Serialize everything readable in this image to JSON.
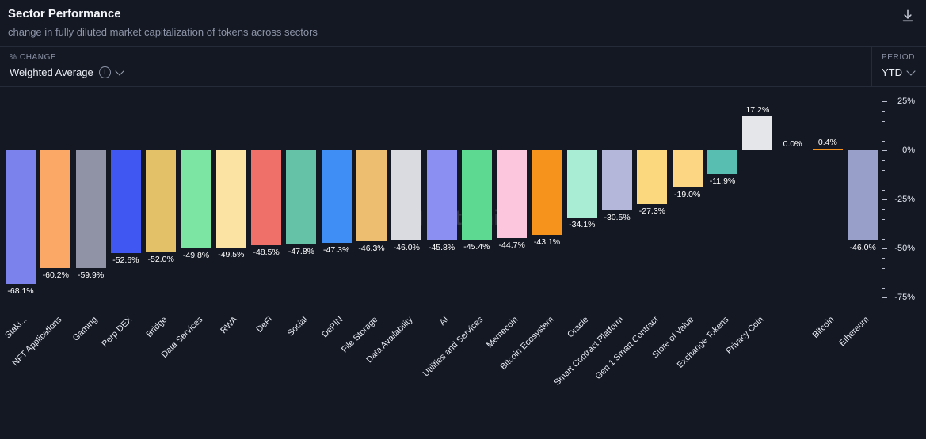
{
  "header": {
    "title": "Sector Performance",
    "subtitle": "change in fully diluted market capitalization of tokens across sectors"
  },
  "controls": {
    "metric": {
      "caption": "% CHANGE",
      "value": "Weighted Average"
    },
    "period": {
      "caption": "PERIOD",
      "value": "YTD"
    }
  },
  "icons": {
    "info": "i"
  },
  "watermark": "Artemis",
  "colors": {
    "background": "#141823",
    "border": "#262b39",
    "text_primary": "#f4f6fa",
    "text_secondary": "#8d94a8",
    "axis": "#b9bfcc",
    "bitcoin_orange": "#f7941d"
  },
  "chart_data": {
    "type": "bar",
    "title": "Sector Performance",
    "ylabel": "% change in fully diluted market cap",
    "ylim": [
      -75,
      25
    ],
    "grid": false,
    "legend": "none",
    "axis_position": "right",
    "x_tick_rotation": 45,
    "value_labels": true,
    "y_axis": {
      "ticks": [
        {
          "label": "25%",
          "value": 25
        },
        {
          "label": "0%",
          "value": 0
        },
        {
          "label": "-25%",
          "value": -25
        },
        {
          "label": "-50%",
          "value": -50
        },
        {
          "label": "-75%",
          "value": -75
        }
      ],
      "minor_step": 5
    },
    "bars": [
      {
        "label": "Staki...",
        "value": -68.1,
        "display": "-68.1%",
        "color": "#7c82ec"
      },
      {
        "label": "NFT Applications",
        "value": -60.2,
        "display": "-60.2%",
        "color": "#fba766"
      },
      {
        "label": "Gaming",
        "value": -59.9,
        "display": "-59.9%",
        "color": "#8f93a5"
      },
      {
        "label": "Perp DEX",
        "value": -52.6,
        "display": "-52.6%",
        "color": "#4157f2"
      },
      {
        "label": "Bridge",
        "value": -52.0,
        "display": "-52.0%",
        "color": "#e2c168"
      },
      {
        "label": "Data Services",
        "value": -49.8,
        "display": "-49.8%",
        "color": "#7de5a4"
      },
      {
        "label": "RWA",
        "value": -49.5,
        "display": "-49.5%",
        "color": "#fbe3a4"
      },
      {
        "label": "DeFi",
        "value": -48.5,
        "display": "-48.5%",
        "color": "#ef7069"
      },
      {
        "label": "Social",
        "value": -47.8,
        "display": "-47.8%",
        "color": "#66c2a7"
      },
      {
        "label": "DePIN",
        "value": -47.3,
        "display": "-47.3%",
        "color": "#3f8ef5"
      },
      {
        "label": "File Storage",
        "value": -46.3,
        "display": "-46.3%",
        "color": "#eebe70"
      },
      {
        "label": "Data Availability",
        "value": -46.0,
        "display": "-46.0%",
        "color": "#d9dbe1"
      },
      {
        "label": "AI",
        "value": -45.8,
        "display": "-45.8%",
        "color": "#8b8ff1"
      },
      {
        "label": "Utilities and Services",
        "value": -45.4,
        "display": "-45.4%",
        "color": "#5dd992"
      },
      {
        "label": "Memecoin",
        "value": -44.7,
        "display": "-44.7%",
        "color": "#fcc6dc"
      },
      {
        "label": "Bitcoin Ecosystem",
        "value": -43.1,
        "display": "-43.1%",
        "color": "#f6931d"
      },
      {
        "label": "Oracle",
        "value": -34.1,
        "display": "-34.1%",
        "color": "#a9eed4"
      },
      {
        "label": "Smart Contract Platform",
        "value": -30.5,
        "display": "-30.5%",
        "color": "#b4b7da"
      },
      {
        "label": "Gen 1 Smart Contract",
        "value": -27.3,
        "display": "-27.3%",
        "color": "#fbd87e"
      },
      {
        "label": "Store of Value",
        "value": -19.0,
        "display": "-19.0%",
        "color": "#fdd683"
      },
      {
        "label": "Exchange Tokens",
        "value": -11.9,
        "display": "-11.9%",
        "color": "#58beb1"
      },
      {
        "label": "Privacy Coin",
        "value": 17.2,
        "display": "17.2%",
        "color": "#e5e6ea"
      },
      {
        "label": "",
        "value": 0.0,
        "display": "0.0%",
        "color": "#9aa0b5"
      },
      {
        "label": "Bitcoin",
        "value": 0.4,
        "display": "0.4%",
        "color": "#f7941d"
      },
      {
        "label": "Ethereum",
        "value": -46.0,
        "display": "-46.0%",
        "color": "#98a0c9"
      }
    ]
  }
}
